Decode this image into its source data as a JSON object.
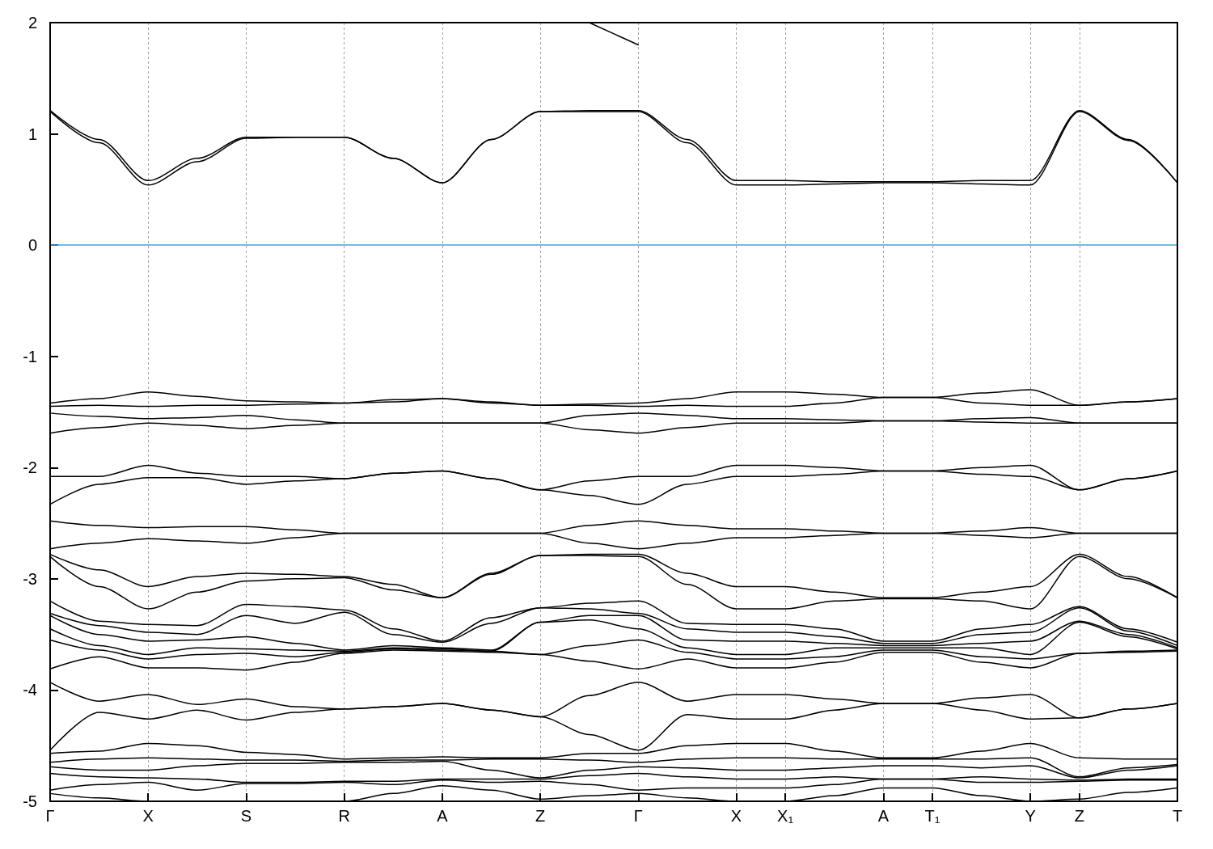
{
  "chart_data": {
    "type": "line",
    "categories": [
      "Γ",
      null,
      "X",
      null,
      "S",
      null,
      "R",
      null,
      "A",
      null,
      "Z",
      null,
      "Γ",
      null,
      "X",
      "X₁",
      null,
      "A",
      "T₁",
      null,
      "Y",
      "Z",
      null,
      "T"
    ],
    "ylim": [
      -5,
      2
    ],
    "yticks": [
      -5,
      -4,
      -3,
      -2,
      -1,
      0,
      1,
      2
    ],
    "grid": "x",
    "marker": "none",
    "line_style": "solid",
    "ref_lines": [
      {
        "axis": "y",
        "value": 0,
        "color": "#3fa6d8"
      }
    ],
    "series": [
      {
        "color": "#000000",
        "values": [
          null,
          null,
          null,
          null,
          null,
          null,
          null,
          null,
          null,
          null,
          null,
          2.0,
          1.8,
          null,
          null,
          null,
          null,
          null,
          null,
          null,
          null,
          null,
          null,
          null
        ]
      },
      {
        "color": "#000000",
        "values": [
          1.21,
          0.95,
          0.58,
          0.78,
          0.97,
          0.97,
          0.97,
          0.78,
          0.56,
          0.95,
          1.2,
          1.21,
          1.21,
          0.95,
          0.58,
          0.58,
          0.57,
          0.57,
          0.57,
          0.58,
          0.58,
          1.21,
          0.95,
          0.56
        ]
      },
      {
        "color": "#000000",
        "values": [
          1.2,
          0.92,
          0.54,
          0.75,
          0.96,
          0.97,
          0.97,
          0.78,
          0.56,
          0.95,
          1.2,
          1.2,
          1.2,
          0.92,
          0.54,
          0.54,
          0.55,
          0.56,
          0.56,
          0.55,
          0.54,
          1.2,
          0.94,
          0.56
        ]
      },
      {
        "color": "#000000",
        "values": [
          -1.42,
          -1.38,
          -1.32,
          -1.36,
          -1.4,
          -1.41,
          -1.42,
          -1.39,
          -1.38,
          -1.41,
          -1.44,
          -1.43,
          -1.42,
          -1.38,
          -1.32,
          -1.32,
          -1.34,
          -1.37,
          -1.37,
          -1.33,
          -1.3,
          -1.44,
          -1.41,
          -1.38
        ]
      },
      {
        "color": "#000000",
        "values": [
          -1.45,
          -1.44,
          -1.45,
          -1.44,
          -1.44,
          -1.43,
          -1.42,
          -1.41,
          -1.38,
          -1.42,
          -1.44,
          -1.44,
          -1.45,
          -1.44,
          -1.45,
          -1.45,
          -1.42,
          -1.37,
          -1.37,
          -1.42,
          -1.44,
          -1.44,
          -1.41,
          -1.38
        ]
      },
      {
        "color": "#000000",
        "values": [
          -1.51,
          -1.54,
          -1.56,
          -1.55,
          -1.53,
          -1.57,
          -1.6,
          -1.6,
          -1.6,
          -1.6,
          -1.6,
          -1.53,
          -1.51,
          -1.53,
          -1.56,
          -1.56,
          -1.57,
          -1.58,
          -1.58,
          -1.56,
          -1.55,
          -1.6,
          -1.6,
          -1.6
        ]
      },
      {
        "color": "#000000",
        "values": [
          -1.69,
          -1.64,
          -1.6,
          -1.62,
          -1.65,
          -1.62,
          -1.6,
          -1.6,
          -1.6,
          -1.6,
          -1.6,
          -1.66,
          -1.69,
          -1.64,
          -1.6,
          -1.6,
          -1.6,
          -1.58,
          -1.58,
          -1.59,
          -1.6,
          -1.6,
          -1.6,
          -1.6
        ]
      },
      {
        "color": "#000000",
        "values": [
          -2.08,
          -2.08,
          -1.98,
          -2.05,
          -2.08,
          -2.08,
          -2.1,
          -2.05,
          -2.03,
          -2.1,
          -2.2,
          -2.12,
          -2.08,
          -2.08,
          -1.98,
          -1.98,
          -2.0,
          -2.03,
          -2.03,
          -2.0,
          -1.98,
          -2.2,
          -2.1,
          -2.03
        ]
      },
      {
        "color": "#000000",
        "values": [
          -2.33,
          -2.15,
          -2.09,
          -2.09,
          -2.15,
          -2.12,
          -2.1,
          -2.05,
          -2.03,
          -2.1,
          -2.2,
          -2.25,
          -2.33,
          -2.15,
          -2.08,
          -2.08,
          -2.06,
          -2.03,
          -2.03,
          -2.06,
          -2.08,
          -2.2,
          -2.1,
          -2.03
        ]
      },
      {
        "color": "#000000",
        "values": [
          -2.48,
          -2.52,
          -2.54,
          -2.53,
          -2.53,
          -2.56,
          -2.59,
          -2.59,
          -2.59,
          -2.59,
          -2.59,
          -2.52,
          -2.48,
          -2.52,
          -2.55,
          -2.55,
          -2.57,
          -2.59,
          -2.59,
          -2.57,
          -2.54,
          -2.59,
          -2.59,
          -2.59
        ]
      },
      {
        "color": "#000000",
        "values": [
          -2.73,
          -2.68,
          -2.64,
          -2.66,
          -2.68,
          -2.63,
          -2.59,
          -2.59,
          -2.59,
          -2.59,
          -2.59,
          -2.68,
          -2.73,
          -2.68,
          -2.63,
          -2.63,
          -2.61,
          -2.59,
          -2.59,
          -2.61,
          -2.63,
          -2.59,
          -2.59,
          -2.59
        ]
      },
      {
        "color": "#000000",
        "values": [
          -2.78,
          -2.92,
          -3.07,
          -2.98,
          -2.95,
          -2.96,
          -2.98,
          -3.05,
          -3.17,
          -2.95,
          -2.79,
          -2.78,
          -2.78,
          -2.95,
          -3.07,
          -3.07,
          -3.12,
          -3.17,
          -3.17,
          -3.12,
          -3.07,
          -2.78,
          -2.98,
          -3.17
        ]
      },
      {
        "color": "#000000",
        "values": [
          -2.8,
          -3.07,
          -3.27,
          -3.12,
          -3.02,
          -3.0,
          -2.99,
          -3.1,
          -3.17,
          -2.96,
          -2.79,
          -2.79,
          -2.8,
          -3.05,
          -3.27,
          -3.27,
          -3.2,
          -3.18,
          -3.18,
          -3.2,
          -3.27,
          -2.8,
          -3.0,
          -3.17
        ]
      },
      {
        "color": "#000000",
        "values": [
          -3.2,
          -3.38,
          -3.41,
          -3.42,
          -3.23,
          -3.25,
          -3.28,
          -3.45,
          -3.56,
          -3.35,
          -3.26,
          -3.22,
          -3.2,
          -3.4,
          -3.41,
          -3.41,
          -3.45,
          -3.56,
          -3.56,
          -3.45,
          -3.41,
          -3.25,
          -3.45,
          -3.57
        ]
      },
      {
        "color": "#000000",
        "values": [
          -3.31,
          -3.42,
          -3.48,
          -3.5,
          -3.33,
          -3.4,
          -3.3,
          -3.5,
          -3.57,
          -3.4,
          -3.26,
          -3.27,
          -3.31,
          -3.45,
          -3.48,
          -3.48,
          -3.52,
          -3.58,
          -3.58,
          -3.5,
          -3.48,
          -3.26,
          -3.47,
          -3.6
        ]
      },
      {
        "color": "#000000",
        "values": [
          -3.33,
          -3.5,
          -3.56,
          -3.55,
          -3.52,
          -3.58,
          -3.64,
          -3.6,
          -3.62,
          -3.64,
          -3.39,
          -3.33,
          -3.33,
          -3.55,
          -3.56,
          -3.56,
          -3.58,
          -3.6,
          -3.6,
          -3.58,
          -3.56,
          -3.38,
          -3.5,
          -3.62
        ]
      },
      {
        "color": "#000000",
        "values": [
          -3.45,
          -3.6,
          -3.68,
          -3.62,
          -3.63,
          -3.64,
          -3.65,
          -3.62,
          -3.63,
          -3.65,
          -3.39,
          -3.37,
          -3.45,
          -3.62,
          -3.68,
          -3.68,
          -3.62,
          -3.62,
          -3.62,
          -3.62,
          -3.68,
          -3.39,
          -3.52,
          -3.63
        ]
      },
      {
        "color": "#000000",
        "values": [
          -3.55,
          -3.64,
          -3.72,
          -3.68,
          -3.67,
          -3.7,
          -3.66,
          -3.63,
          -3.64,
          -3.65,
          -3.68,
          -3.6,
          -3.55,
          -3.66,
          -3.72,
          -3.72,
          -3.7,
          -3.64,
          -3.64,
          -3.7,
          -3.72,
          -3.67,
          -3.65,
          -3.64
        ]
      },
      {
        "color": "#000000",
        "values": [
          -3.81,
          -3.7,
          -3.8,
          -3.8,
          -3.82,
          -3.75,
          -3.67,
          -3.64,
          -3.65,
          -3.66,
          -3.68,
          -3.74,
          -3.81,
          -3.72,
          -3.8,
          -3.8,
          -3.75,
          -3.66,
          -3.66,
          -3.75,
          -3.8,
          -3.67,
          -3.66,
          -3.65
        ]
      },
      {
        "color": "#000000",
        "values": [
          -3.93,
          -4.1,
          -4.04,
          -4.13,
          -4.08,
          -4.15,
          -4.17,
          -4.15,
          -4.12,
          -4.18,
          -4.24,
          -4.05,
          -3.93,
          -4.1,
          -4.04,
          -4.04,
          -4.08,
          -4.12,
          -4.12,
          -4.07,
          -4.04,
          -4.25,
          -4.17,
          -4.12
        ]
      },
      {
        "color": "#000000",
        "values": [
          -4.54,
          -4.2,
          -4.26,
          -4.18,
          -4.27,
          -4.2,
          -4.17,
          -4.15,
          -4.12,
          -4.18,
          -4.24,
          -4.4,
          -4.54,
          -4.22,
          -4.26,
          -4.26,
          -4.18,
          -4.12,
          -4.12,
          -4.18,
          -4.26,
          -4.25,
          -4.17,
          -4.12
        ]
      },
      {
        "color": "#000000",
        "values": [
          -4.57,
          -4.55,
          -4.48,
          -4.5,
          -4.56,
          -4.58,
          -4.62,
          -4.61,
          -4.6,
          -4.61,
          -4.61,
          -4.57,
          -4.57,
          -4.5,
          -4.48,
          -4.48,
          -4.55,
          -4.61,
          -4.61,
          -4.55,
          -4.48,
          -4.61,
          -4.62,
          -4.62
        ]
      },
      {
        "color": "#000000",
        "values": [
          -4.65,
          -4.62,
          -4.61,
          -4.62,
          -4.63,
          -4.63,
          -4.64,
          -4.63,
          -4.63,
          -4.62,
          -4.62,
          -4.63,
          -4.65,
          -4.62,
          -4.61,
          -4.61,
          -4.62,
          -4.62,
          -4.62,
          -4.62,
          -4.61,
          -4.78,
          -4.7,
          -4.67
        ]
      },
      {
        "color": "#000000",
        "values": [
          -4.69,
          -4.72,
          -4.72,
          -4.68,
          -4.66,
          -4.66,
          -4.65,
          -4.65,
          -4.64,
          -4.72,
          -4.79,
          -4.72,
          -4.69,
          -4.7,
          -4.72,
          -4.72,
          -4.7,
          -4.68,
          -4.68,
          -4.7,
          -4.68,
          -4.79,
          -4.72,
          -4.68
        ]
      },
      {
        "color": "#000000",
        "values": [
          -4.75,
          -4.78,
          -4.79,
          -4.8,
          -4.83,
          -4.83,
          -4.82,
          -4.82,
          -4.8,
          -4.8,
          -4.8,
          -4.77,
          -4.75,
          -4.78,
          -4.8,
          -4.8,
          -4.78,
          -4.8,
          -4.8,
          -4.78,
          -4.8,
          -4.81,
          -4.8,
          -4.8
        ]
      },
      {
        "color": "#000000",
        "values": [
          -4.9,
          -4.85,
          -4.83,
          -4.9,
          -4.84,
          -4.84,
          -4.83,
          -4.85,
          -4.81,
          -4.83,
          -4.82,
          -4.85,
          -4.9,
          -4.88,
          -4.88,
          -4.88,
          -4.85,
          -4.8,
          -4.8,
          -4.83,
          -4.83,
          -4.82,
          -4.81,
          -4.81
        ]
      },
      {
        "color": "#000000",
        "values": [
          -4.93,
          -4.97,
          -5.0,
          -5.0,
          -5.0,
          -5.0,
          -5.0,
          -4.93,
          -4.86,
          -4.9,
          -4.98,
          -4.95,
          -4.93,
          -4.97,
          -5.0,
          -5.0,
          -4.95,
          -4.88,
          -4.88,
          -4.95,
          -5.0,
          -4.98,
          -4.92,
          -4.88
        ]
      }
    ]
  }
}
